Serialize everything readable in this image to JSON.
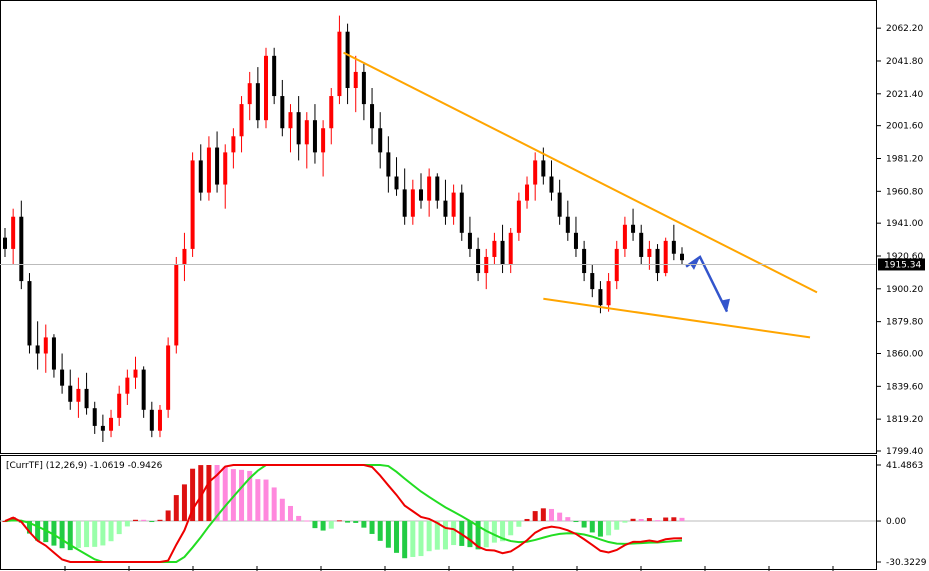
{
  "chart_data": [
    {
      "type": "candlestick",
      "x_axis_visible_labels": false,
      "ylim": [
        1799.4,
        2071
      ],
      "y_ticks": [
        "2062.20",
        "2041.80",
        "2021.40",
        "2001.60",
        "1981.20",
        "1960.80",
        "1941.00",
        "1920.60",
        "1900.20",
        "1879.80",
        "1860.00",
        "1839.60",
        "1819.20",
        "1799.40"
      ],
      "current_price": "1915.34",
      "current_price_value": 1915.34,
      "candles": [
        [
          1932,
          1938,
          1920,
          1925
        ],
        [
          1925,
          1950,
          1915,
          1945
        ],
        [
          1945,
          1955,
          1900,
          1905
        ],
        [
          1905,
          1910,
          1860,
          1865
        ],
        [
          1865,
          1880,
          1850,
          1860
        ],
        [
          1860,
          1878,
          1848,
          1870
        ],
        [
          1870,
          1872,
          1845,
          1850
        ],
        [
          1850,
          1860,
          1835,
          1840
        ],
        [
          1840,
          1850,
          1825,
          1830
        ],
        [
          1830,
          1845,
          1820,
          1838
        ],
        [
          1838,
          1848,
          1822,
          1826
        ],
        [
          1826,
          1830,
          1810,
          1815
        ],
        [
          1815,
          1822,
          1805,
          1812
        ],
        [
          1812,
          1825,
          1808,
          1820
        ],
        [
          1820,
          1840,
          1815,
          1835
        ],
        [
          1835,
          1850,
          1828,
          1845
        ],
        [
          1845,
          1858,
          1838,
          1850
        ],
        [
          1850,
          1852,
          1820,
          1825
        ],
        [
          1825,
          1830,
          1808,
          1812
        ],
        [
          1812,
          1828,
          1808,
          1825
        ],
        [
          1825,
          1870,
          1820,
          1865
        ],
        [
          1865,
          1920,
          1860,
          1915
        ],
        [
          1915,
          1935,
          1905,
          1925
        ],
        [
          1925,
          1985,
          1920,
          1980
        ],
        [
          1980,
          1990,
          1955,
          1960
        ],
        [
          1960,
          1995,
          1955,
          1988
        ],
        [
          1988,
          1998,
          1960,
          1965
        ],
        [
          1965,
          1990,
          1950,
          1985
        ],
        [
          1985,
          2000,
          1975,
          1995
        ],
        [
          1995,
          2020,
          1985,
          2015
        ],
        [
          2015,
          2035,
          2005,
          2028
        ],
        [
          2028,
          2038,
          2000,
          2005
        ],
        [
          2005,
          2050,
          2000,
          2045
        ],
        [
          2045,
          2050,
          2015,
          2020
        ],
        [
          2020,
          2030,
          1995,
          2000
        ],
        [
          2000,
          2015,
          1985,
          2010
        ],
        [
          2010,
          2020,
          1980,
          1990
        ],
        [
          1990,
          2010,
          1975,
          2005
        ],
        [
          2005,
          2015,
          1978,
          1985
        ],
        [
          1985,
          2005,
          1970,
          2000
        ],
        [
          2000,
          2025,
          1990,
          2020
        ],
        [
          2020,
          2070,
          2015,
          2060
        ],
        [
          2060,
          2065,
          2015,
          2025
        ],
        [
          2025,
          2045,
          2010,
          2035
        ],
        [
          2035,
          2040,
          2005,
          2015
        ],
        [
          2015,
          2025,
          1990,
          2000
        ],
        [
          2000,
          2010,
          1975,
          1985
        ],
        [
          1985,
          1995,
          1960,
          1970
        ],
        [
          1970,
          1982,
          1958,
          1962
        ],
        [
          1962,
          1975,
          1940,
          1945
        ],
        [
          1945,
          1968,
          1940,
          1962
        ],
        [
          1962,
          1972,
          1950,
          1955
        ],
        [
          1955,
          1975,
          1945,
          1970
        ],
        [
          1970,
          1972,
          1950,
          1955
        ],
        [
          1955,
          1968,
          1940,
          1945
        ],
        [
          1945,
          1965,
          1940,
          1960
        ],
        [
          1960,
          1965,
          1930,
          1935
        ],
        [
          1935,
          1945,
          1920,
          1925
        ],
        [
          1925,
          1932,
          1905,
          1910
        ],
        [
          1910,
          1925,
          1900,
          1920
        ],
        [
          1920,
          1935,
          1915,
          1930
        ],
        [
          1930,
          1940,
          1910,
          1915
        ],
        [
          1915,
          1938,
          1910,
          1935
        ],
        [
          1935,
          1960,
          1930,
          1955
        ],
        [
          1955,
          1970,
          1950,
          1965
        ],
        [
          1965,
          1985,
          1955,
          1980
        ],
        [
          1980,
          1988,
          1965,
          1970
        ],
        [
          1970,
          1980,
          1955,
          1960
        ],
        [
          1960,
          1968,
          1940,
          1945
        ],
        [
          1945,
          1955,
          1930,
          1935
        ],
        [
          1935,
          1945,
          1920,
          1925
        ],
        [
          1925,
          1930,
          1905,
          1910
        ],
        [
          1910,
          1915,
          1895,
          1900
        ],
        [
          1900,
          1905,
          1885,
          1890
        ],
        [
          1890,
          1910,
          1886,
          1905
        ],
        [
          1905,
          1930,
          1900,
          1925
        ],
        [
          1925,
          1945,
          1920,
          1940
        ],
        [
          1940,
          1950,
          1930,
          1935
        ],
        [
          1935,
          1940,
          1915,
          1920
        ],
        [
          1920,
          1930,
          1912,
          1925
        ],
        [
          1925,
          1928,
          1905,
          1910
        ],
        [
          1910,
          1932,
          1908,
          1930
        ],
        [
          1930,
          1940,
          1918,
          1922
        ],
        [
          1922,
          1926,
          1915,
          1918
        ]
      ]
    },
    {
      "type": "macd",
      "title": "[CurrTF] (12,26,9) -1.0619 -0.9426",
      "ylim": [
        -30.3229,
        41.4863
      ],
      "y_ticks": [
        "41.4863",
        "0.00",
        "-30.3229"
      ],
      "colors": {
        "up": "#ff0000",
        "down": "#000000",
        "trend_line": "#ffa500",
        "arrow": "#3355cc",
        "hist_pos": "#dd1111",
        "hist_pos_fade": "#ff88dd",
        "hist_neg": "#22cc44",
        "hist_neg_fade": "#99ffaa",
        "macd_line": "#ee0000",
        "signal_line": "#22dd22"
      }
    }
  ]
}
